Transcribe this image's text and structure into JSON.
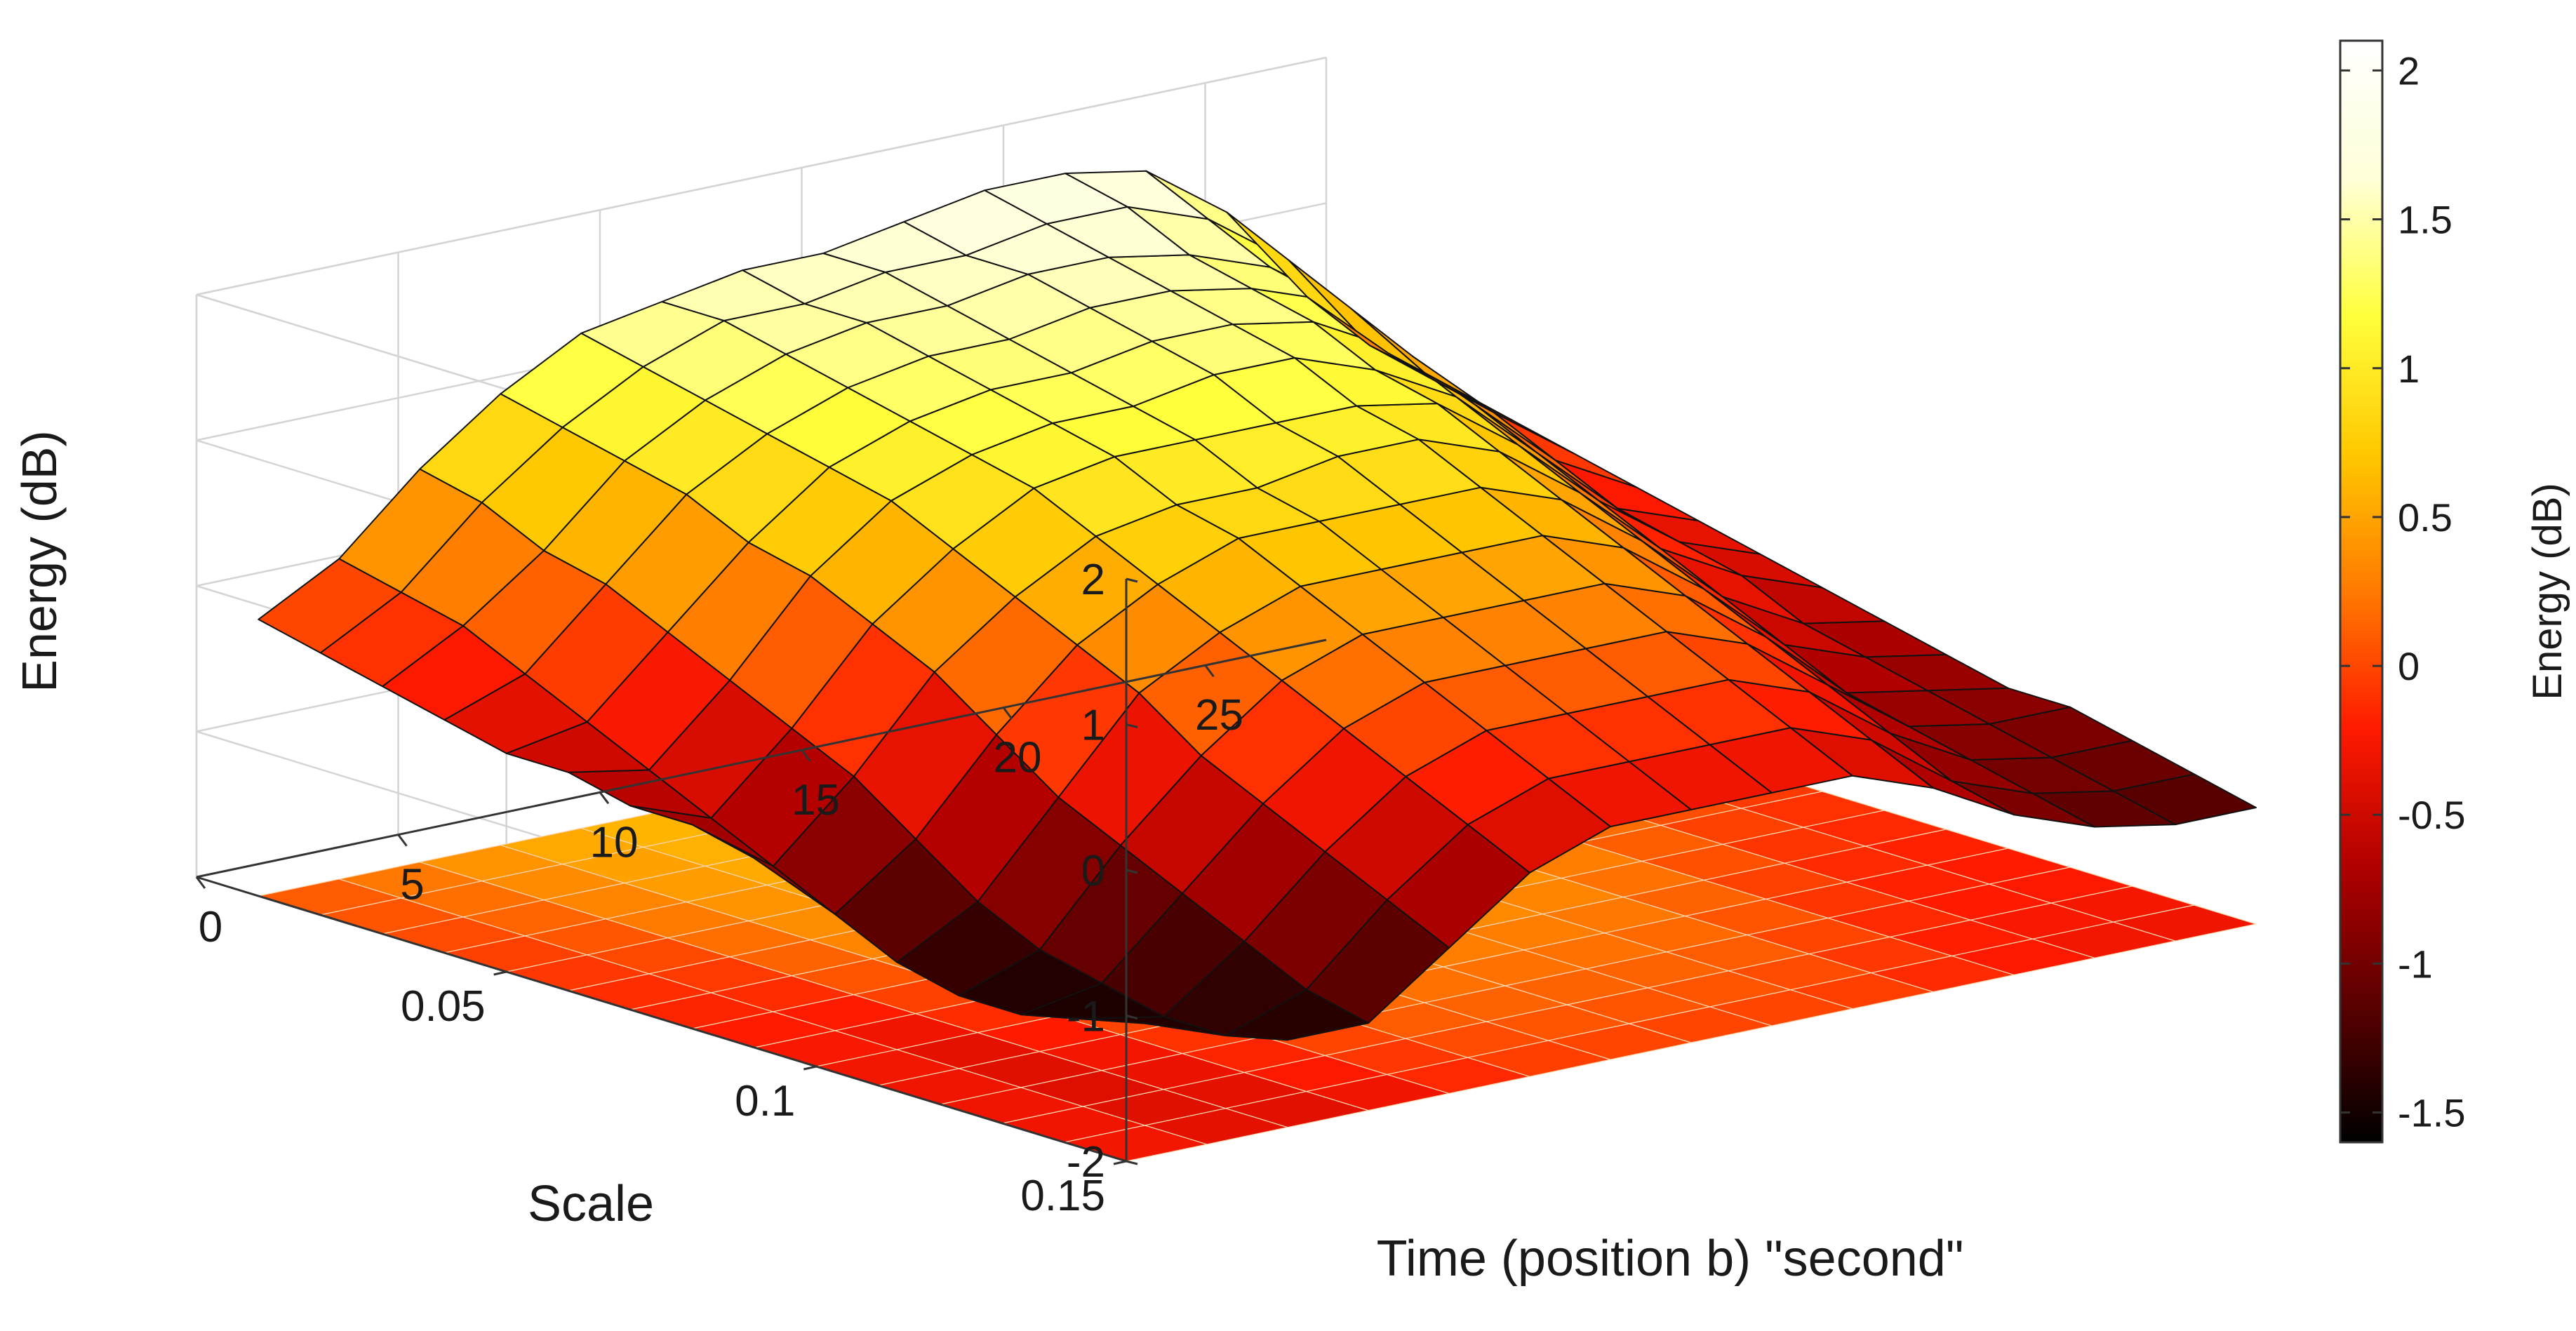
{
  "chart_data": {
    "type": "surface3d",
    "title": "",
    "xlabel": "Time (position b) \"second\"",
    "ylabel": "Scale",
    "zlabel": "Energy (dB)",
    "xlim": [
      0,
      28
    ],
    "ylim": [
      0,
      0.15
    ],
    "zlim": [
      -2,
      2
    ],
    "x_ticks": [
      0,
      5,
      10,
      15,
      20,
      25
    ],
    "x_tick_labels": [
      "0",
      "5",
      "10",
      "15",
      "20",
      "25"
    ],
    "y_ticks": [
      0.05,
      0.1,
      0.15
    ],
    "y_tick_labels": [
      "0.05",
      "0.1",
      "0.15"
    ],
    "z_ticks": [
      -2,
      -1,
      0,
      1,
      2
    ],
    "z_tick_labels": [
      "-2",
      "-1",
      "0",
      "1",
      "2"
    ],
    "grid": true,
    "colormap": "hot",
    "colorbar": {
      "label": "Energy (dB)",
      "range": [
        -1.6,
        2.1
      ],
      "ticks": [
        -1.5,
        -1,
        -0.5,
        0,
        0.5,
        1,
        1.5,
        2
      ],
      "tick_labels": [
        "-1.5",
        "-1",
        "-0.5",
        "0",
        "0.5",
        "1",
        "1.5",
        "2"
      ],
      "colors": [
        "#000000",
        "#5a0000",
        "#b00000",
        "#ff1a00",
        "#ff7a00",
        "#ffc800",
        "#ffff3c",
        "#ffffd8",
        "#ffffff"
      ]
    },
    "surface_scales": [
      0.01,
      0.02,
      0.03,
      0.04,
      0.05,
      0.06,
      0.07,
      0.08,
      0.09,
      0.1,
      0.11,
      0.12,
      0.13,
      0.14,
      0.15
    ],
    "surface_times": [
      0,
      2,
      4,
      6,
      8,
      10,
      12,
      14,
      16,
      18,
      20,
      22,
      24,
      26,
      28
    ],
    "energy_grid": [
      [
        -0.1,
        0.2,
        0.7,
        1.1,
        1.4,
        1.5,
        1.6,
        1.6,
        1.7,
        1.8,
        1.8,
        1.7,
        1.3,
        0.6,
        0.1
      ],
      [
        -0.2,
        0.1,
        0.6,
        1.0,
        1.3,
        1.5,
        1.5,
        1.6,
        1.6,
        1.7,
        1.7,
        1.5,
        1.1,
        0.4,
        0.0
      ],
      [
        -0.3,
        0.0,
        0.4,
        0.9,
        1.2,
        1.4,
        1.5,
        1.5,
        1.6,
        1.6,
        1.5,
        1.3,
        0.9,
        0.3,
        -0.1
      ],
      [
        -0.4,
        -0.2,
        0.3,
        0.8,
        1.1,
        1.3,
        1.4,
        1.4,
        1.5,
        1.5,
        1.4,
        1.2,
        0.7,
        0.2,
        -0.2
      ],
      [
        -0.5,
        -0.4,
        0.1,
        0.6,
        1.0,
        1.2,
        1.3,
        1.3,
        1.4,
        1.4,
        1.3,
        1.0,
        0.5,
        0.0,
        -0.3
      ],
      [
        -0.5,
        -0.6,
        -0.1,
        0.5,
        0.9,
        1.1,
        1.2,
        1.2,
        1.3,
        1.3,
        1.1,
        0.8,
        0.3,
        -0.2,
        -0.4
      ],
      [
        -0.6,
        -0.8,
        -0.3,
        0.3,
        0.7,
        1.0,
        1.1,
        1.1,
        1.1,
        1.1,
        1.0,
        0.6,
        0.1,
        -0.3,
        -0.5
      ],
      [
        -0.6,
        -1.0,
        -0.5,
        0.1,
        0.5,
        0.8,
        0.9,
        0.9,
        1.0,
        1.0,
        0.8,
        0.4,
        -0.1,
        -0.4,
        -0.6
      ],
      [
        -0.7,
        -1.2,
        -0.8,
        -0.2,
        0.3,
        0.6,
        0.8,
        0.8,
        0.8,
        0.8,
        0.6,
        0.2,
        -0.3,
        -0.6,
        -0.7
      ],
      [
        -0.7,
        -1.4,
        -1.1,
        -0.5,
        0.1,
        0.4,
        0.6,
        0.6,
        0.6,
        0.6,
        0.4,
        0.0,
        -0.5,
        -0.7,
        -0.8
      ],
      [
        -0.8,
        -1.5,
        -1.3,
        -0.7,
        -0.2,
        0.2,
        0.4,
        0.4,
        0.4,
        0.4,
        0.2,
        -0.2,
        -0.7,
        -0.8,
        -0.9
      ],
      [
        -0.8,
        -1.5,
        -1.4,
        -0.9,
        -0.4,
        0.0,
        0.2,
        0.2,
        0.2,
        0.2,
        0.0,
        -0.4,
        -0.8,
        -0.9,
        -0.9
      ],
      [
        -0.9,
        -1.4,
        -1.5,
        -1.1,
        -0.6,
        -0.2,
        0.0,
        0.0,
        0.0,
        0.0,
        -0.2,
        -0.6,
        -0.9,
        -1.0,
        -1.0
      ],
      [
        -0.9,
        -1.3,
        -1.5,
        -1.3,
        -0.8,
        -0.4,
        -0.2,
        -0.2,
        -0.2,
        -0.2,
        -0.4,
        -0.8,
        -1.0,
        -1.1,
        -1.1
      ],
      [
        -1.0,
        -1.2,
        -1.4,
        -1.4,
        -1.0,
        -0.6,
        -0.4,
        -0.4,
        -0.4,
        -0.4,
        -0.6,
        -0.9,
        -1.1,
        -1.2,
        -1.2
      ]
    ]
  }
}
